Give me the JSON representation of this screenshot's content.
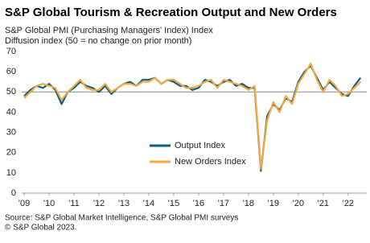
{
  "chart_data": {
    "type": "line",
    "title": "S&P Global Tourism & Recreation Output and New Orders",
    "subtitle": "S&P Global  PMI (Purchasing Managers' Index) Index",
    "y_label": "Diffusion index (50 = no change on prior month)",
    "source": "Source: S&P Global Market Intelligence, S&P Global PMI surveys",
    "copyright": "© S&P Global 2023.",
    "x": [
      2009,
      2009.25,
      2009.5,
      2009.75,
      2010,
      2010.25,
      2010.5,
      2010.75,
      2011,
      2011.25,
      2011.5,
      2011.75,
      2012,
      2012.25,
      2012.5,
      2012.75,
      2013,
      2013.25,
      2013.5,
      2013.75,
      2014,
      2014.25,
      2014.5,
      2014.75,
      2015,
      2015.25,
      2015.5,
      2015.75,
      2016,
      2016.25,
      2016.5,
      2016.75,
      2017,
      2017.25,
      2017.5,
      2017.75,
      2018,
      2018.25,
      2018.5,
      2018.75,
      2019,
      2019.25,
      2019.5,
      2019.75,
      2020,
      2020.25,
      2020.5,
      2020.75,
      2021,
      2021.25,
      2021.5,
      2021.75,
      2022,
      2022.25,
      2022.5
    ],
    "series": [
      {
        "name": "Output Index",
        "color": "#0b5e7e",
        "values": [
          48,
          51,
          53,
          52,
          54,
          51,
          44,
          50,
          52,
          55,
          53,
          52,
          50,
          53,
          49,
          52,
          54,
          55,
          53,
          56,
          56,
          57,
          54,
          56,
          55,
          53,
          53,
          51,
          52,
          56,
          55,
          53,
          55,
          56,
          53,
          54,
          52,
          52,
          11,
          38,
          44,
          41,
          47,
          45,
          55,
          60,
          63,
          57,
          51,
          55,
          52,
          49,
          48,
          53,
          57
        ]
      },
      {
        "name": "New Orders Index",
        "color": "#f5a742",
        "values": [
          47,
          50,
          53,
          54,
          53,
          52,
          46,
          50,
          53,
          56,
          52,
          51,
          51,
          54,
          50,
          52,
          54,
          54,
          53,
          55,
          55,
          57,
          54,
          56,
          56,
          54,
          52,
          52,
          53,
          55,
          56,
          52,
          56,
          55,
          54,
          53,
          51,
          53,
          12,
          36,
          45,
          40,
          48,
          44,
          54,
          59,
          64,
          56,
          50,
          56,
          53,
          48,
          49,
          52,
          55
        ]
      }
    ],
    "hline": 50,
    "xlim": [
      2008.9,
      2022.75
    ],
    "xticks": [
      {
        "value": 2009,
        "label": "'09"
      },
      {
        "value": 2010,
        "label": "'10"
      },
      {
        "value": 2011,
        "label": "'11"
      },
      {
        "value": 2012,
        "label": "'12"
      },
      {
        "value": 2013,
        "label": "'13"
      },
      {
        "value": 2014,
        "label": "'14"
      },
      {
        "value": 2015,
        "label": "'15"
      },
      {
        "value": 2016,
        "label": "'16"
      },
      {
        "value": 2017,
        "label": "'17"
      },
      {
        "value": 2018,
        "label": "'18"
      },
      {
        "value": 2019,
        "label": "'19"
      },
      {
        "value": 2020,
        "label": "'20"
      },
      {
        "value": 2021,
        "label": "'21"
      },
      {
        "value": 2022,
        "label": "'22"
      }
    ],
    "ylim": [
      0,
      70
    ],
    "yticks": [
      0,
      10,
      20,
      30,
      40,
      50,
      60,
      70
    ]
  }
}
